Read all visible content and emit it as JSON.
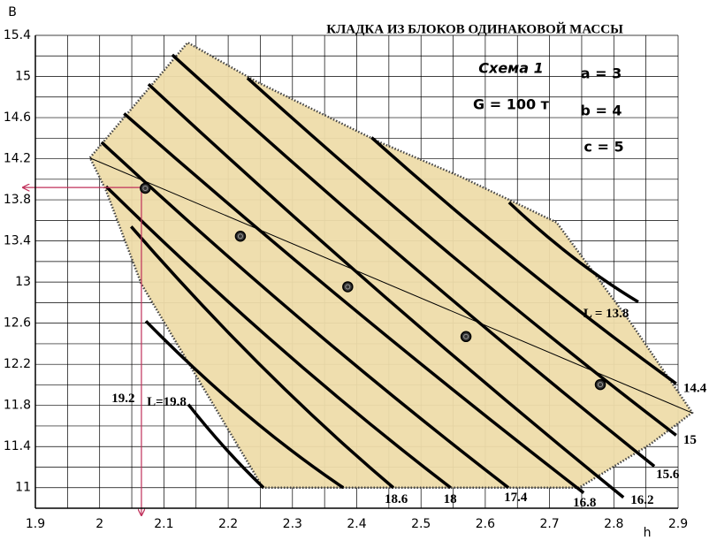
{
  "chart_data": {
    "type": "nomogram",
    "title": "КЛАДКА  ИЗ  БЛОКОВ  ОДИНАКОВОЙ МАССЫ",
    "annotations": [
      "Схема 1",
      "G = 100 т",
      "a = 3",
      "b = 4",
      "c = 5"
    ],
    "x_label": "h",
    "y_label": "B",
    "xlim": [
      1.9,
      2.9
    ],
    "ylim": [
      10.8,
      15.4
    ],
    "xticks": [
      1.9,
      2,
      2.1,
      2.2,
      2.3,
      2.4,
      2.5,
      2.6,
      2.7,
      2.8,
      2.9
    ],
    "yticks": [
      11,
      11.4,
      11.8,
      12.2,
      12.6,
      13,
      13.4,
      13.8,
      14.2,
      14.6,
      15,
      15.4
    ],
    "grid": true,
    "region": {
      "color": "#eedcaa",
      "x": [
        1.985,
        2.137,
        2.244,
        2.436,
        2.56,
        2.711,
        2.828,
        2.922,
        2.856,
        2.746,
        2.254,
        2.065,
        2.01
      ],
      "y": [
        14.21,
        15.33,
        14.95,
        14.36,
        14.03,
        13.58,
        12.59,
        11.73,
        11.42,
        11.0,
        11.0,
        12.98,
        13.89
      ]
    },
    "series": [
      {
        "name": "L = 13.8",
        "color": "#000000",
        "x": [
          2.637,
          2.737,
          2.838
        ],
        "y": [
          13.775,
          13.239,
          12.807
        ]
      },
      {
        "name": "14.4",
        "color": "#000000",
        "x": [
          2.423,
          2.659,
          2.897
        ],
        "y": [
          14.406,
          13.152,
          12.012
        ]
      },
      {
        "name": "15",
        "color": "#000000",
        "x": [
          2.23,
          2.563,
          2.897
        ],
        "y": [
          14.985,
          13.178,
          11.51
        ]
      },
      {
        "name": "15.6",
        "color": "#000000",
        "x": [
          2.113,
          2.487,
          2.863
        ],
        "y": [
          15.21,
          13.153,
          11.208
        ]
      },
      {
        "name": "16.2",
        "color": "#000000",
        "x": [
          2.076,
          2.445,
          2.815
        ],
        "y": [
          14.925,
          12.85,
          10.905
        ]
      },
      {
        "name": "16.8",
        "color": "#000000",
        "x": [
          2.038,
          2.395,
          2.753
        ],
        "y": [
          14.64,
          12.74,
          10.95
        ]
      },
      {
        "name": "17.4",
        "color": "#000000",
        "x": [
          2.003,
          2.32,
          2.636
        ],
        "y": [
          14.36,
          12.6,
          11.0
        ]
      },
      {
        "name": "18",
        "color": "#000000",
        "x": [
          2.01,
          2.278,
          2.546
        ],
        "y": [
          13.93,
          12.375,
          11.0
        ]
      },
      {
        "name": "18.6",
        "color": "#000000",
        "x": [
          2.049,
          2.252,
          2.457
        ],
        "y": [
          13.54,
          12.18,
          11.0
        ]
      },
      {
        "name": "19.2",
        "color": "#000000",
        "x": [
          2.072,
          2.225,
          2.379
        ],
        "y": [
          12.62,
          11.73,
          11.0
        ]
      },
      {
        "name": "L=19.8",
        "color": "#000000",
        "x": [
          2.138,
          2.196,
          2.255
        ],
        "y": [
          11.81,
          11.38,
          11.0
        ]
      }
    ],
    "optimum_line": {
      "color": "#000000",
      "x": [
        1.985,
        2.922
      ],
      "y": [
        14.207,
        11.727
      ]
    },
    "points": {
      "color": "#333333",
      "x": [
        2.071,
        2.219,
        2.386,
        2.57,
        2.779
      ],
      "y": [
        13.913,
        13.446,
        12.954,
        12.47,
        12.003
      ]
    },
    "guide": {
      "color": "#c0305a",
      "x": 2.065,
      "y": 13.92
    }
  }
}
